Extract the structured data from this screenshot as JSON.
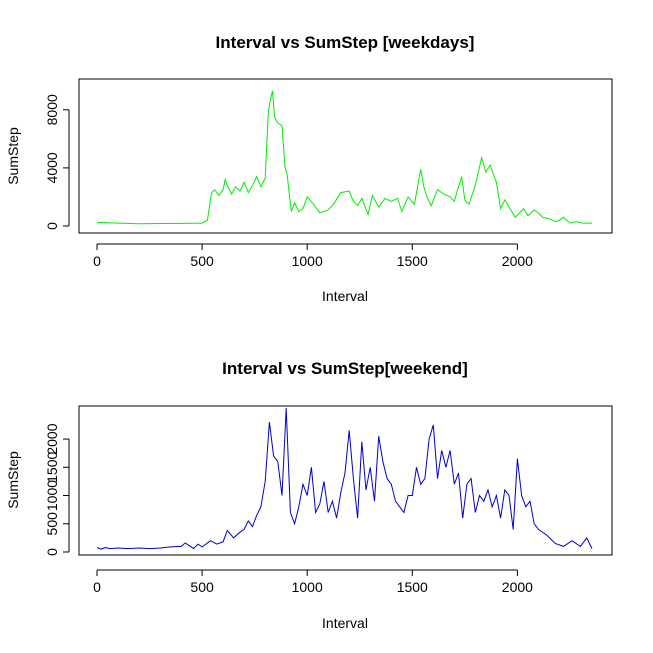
{
  "chart_data": [
    {
      "type": "line",
      "title": "Interval vs SumStep [weekdays]",
      "xlabel": "Interval",
      "ylabel": "SumStep",
      "xlim": [
        0,
        2355
      ],
      "ylim": [
        0,
        9500
      ],
      "xticks": [
        0,
        500,
        1000,
        1500,
        2000
      ],
      "yticks": [
        0,
        4000,
        8000
      ],
      "grid": false,
      "colors": {
        "line": "#00ee00"
      },
      "series": [
        {
          "x": [
            0,
            100,
            200,
            300,
            400,
            500,
            525,
            545,
            560,
            580,
            600,
            610,
            620,
            640,
            660,
            680,
            700,
            720,
            740,
            760,
            780,
            800,
            815,
            825,
            835,
            845,
            860,
            880,
            895,
            905,
            915,
            925,
            940,
            960,
            980,
            1000,
            1030,
            1060,
            1100,
            1130,
            1160,
            1200,
            1220,
            1240,
            1260,
            1290,
            1310,
            1340,
            1370,
            1400,
            1430,
            1450,
            1480,
            1510,
            1540,
            1555,
            1570,
            1590,
            1620,
            1650,
            1680,
            1700,
            1720,
            1735,
            1750,
            1770,
            1800,
            1830,
            1850,
            1870,
            1900,
            1920,
            1940,
            1960,
            1990,
            2010,
            2030,
            2050,
            2080,
            2100,
            2120,
            2150,
            2180,
            2200,
            2220,
            2250,
            2280,
            2310,
            2355
          ],
          "values": [
            250,
            200,
            150,
            170,
            180,
            200,
            400,
            2300,
            2500,
            2100,
            2500,
            3200,
            2800,
            2200,
            2700,
            2400,
            3000,
            2300,
            2800,
            3400,
            2700,
            3300,
            7800,
            8700,
            9300,
            7500,
            7100,
            6900,
            4000,
            3500,
            2200,
            1000,
            1600,
            1000,
            1200,
            2000,
            1500,
            900,
            1100,
            1600,
            2300,
            2400,
            1700,
            1400,
            1900,
            800,
            2100,
            1300,
            1900,
            1700,
            1900,
            1000,
            2000,
            1500,
            3900,
            2700,
            2000,
            1400,
            2500,
            2200,
            2000,
            1700,
            2700,
            3400,
            1800,
            1500,
            2800,
            4700,
            3700,
            4200,
            3000,
            1200,
            1800,
            1300,
            600,
            900,
            1200,
            700,
            1100,
            900,
            600,
            500,
            300,
            400,
            600,
            200,
            300,
            200,
            200
          ]
        }
      ]
    },
    {
      "type": "line",
      "title": "Interval vs SumStep[weekend]",
      "xlabel": "Interval",
      "ylabel": "SumStep",
      "xlim": [
        0,
        2355
      ],
      "ylim": [
        0,
        2550
      ],
      "xticks": [
        0,
        500,
        1000,
        1500,
        2000
      ],
      "yticks": [
        0,
        500,
        1000,
        1500,
        2000
      ],
      "grid": false,
      "colors": {
        "line": "#0000cc"
      },
      "series": [
        {
          "x": [
            0,
            20,
            40,
            60,
            100,
            150,
            200,
            250,
            300,
            350,
            400,
            420,
            440,
            460,
            480,
            500,
            540,
            570,
            600,
            620,
            650,
            680,
            700,
            720,
            740,
            760,
            780,
            800,
            820,
            840,
            860,
            880,
            900,
            920,
            940,
            960,
            980,
            1000,
            1020,
            1040,
            1060,
            1080,
            1100,
            1120,
            1140,
            1160,
            1180,
            1200,
            1220,
            1240,
            1260,
            1280,
            1300,
            1320,
            1340,
            1360,
            1380,
            1400,
            1420,
            1440,
            1460,
            1480,
            1500,
            1520,
            1540,
            1560,
            1580,
            1600,
            1620,
            1640,
            1660,
            1680,
            1700,
            1720,
            1740,
            1760,
            1780,
            1800,
            1820,
            1840,
            1860,
            1880,
            1900,
            1920,
            1940,
            1960,
            1980,
            2000,
            2020,
            2040,
            2060,
            2080,
            2100,
            2140,
            2180,
            2220,
            2260,
            2300,
            2330,
            2355
          ],
          "values": [
            80,
            50,
            80,
            60,
            70,
            60,
            70,
            60,
            70,
            90,
            100,
            160,
            110,
            60,
            140,
            90,
            200,
            140,
            180,
            380,
            250,
            350,
            400,
            550,
            450,
            650,
            800,
            1250,
            2300,
            1700,
            1600,
            1000,
            2550,
            700,
            500,
            800,
            1200,
            1000,
            1500,
            700,
            850,
            1250,
            700,
            900,
            600,
            1050,
            1400,
            2150,
            1300,
            600,
            1950,
            1100,
            1500,
            900,
            2050,
            1600,
            1300,
            1200,
            900,
            800,
            700,
            1000,
            1000,
            1500,
            1200,
            1300,
            2000,
            2250,
            1300,
            1800,
            1500,
            1800,
            1200,
            1400,
            600,
            1200,
            1300,
            700,
            1000,
            900,
            1100,
            800,
            1000,
            600,
            1100,
            1000,
            400,
            1650,
            1000,
            800,
            900,
            500,
            400,
            300,
            150,
            100,
            200,
            100,
            250,
            60
          ]
        }
      ]
    }
  ]
}
